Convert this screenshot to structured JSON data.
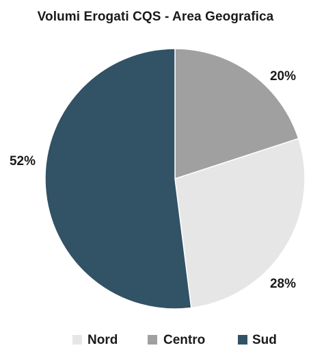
{
  "chart_data": {
    "type": "pie",
    "title": "Volumi Erogati CQS - Area Geografica",
    "slices": [
      {
        "label": "Centro",
        "value": 20,
        "display": "20%",
        "color": "#a0a0a0"
      },
      {
        "label": "Nord",
        "value": 28,
        "display": "28%",
        "color": "#e6e6e6"
      },
      {
        "label": "Sud",
        "value": 52,
        "display": "52%",
        "color": "#325265"
      }
    ],
    "legend": {
      "position": "bottom",
      "entries": [
        {
          "label": "Nord",
          "color": "#e6e6e6"
        },
        {
          "label": "Centro",
          "color": "#a0a0a0"
        },
        {
          "label": "Sud",
          "color": "#325265"
        }
      ]
    }
  }
}
